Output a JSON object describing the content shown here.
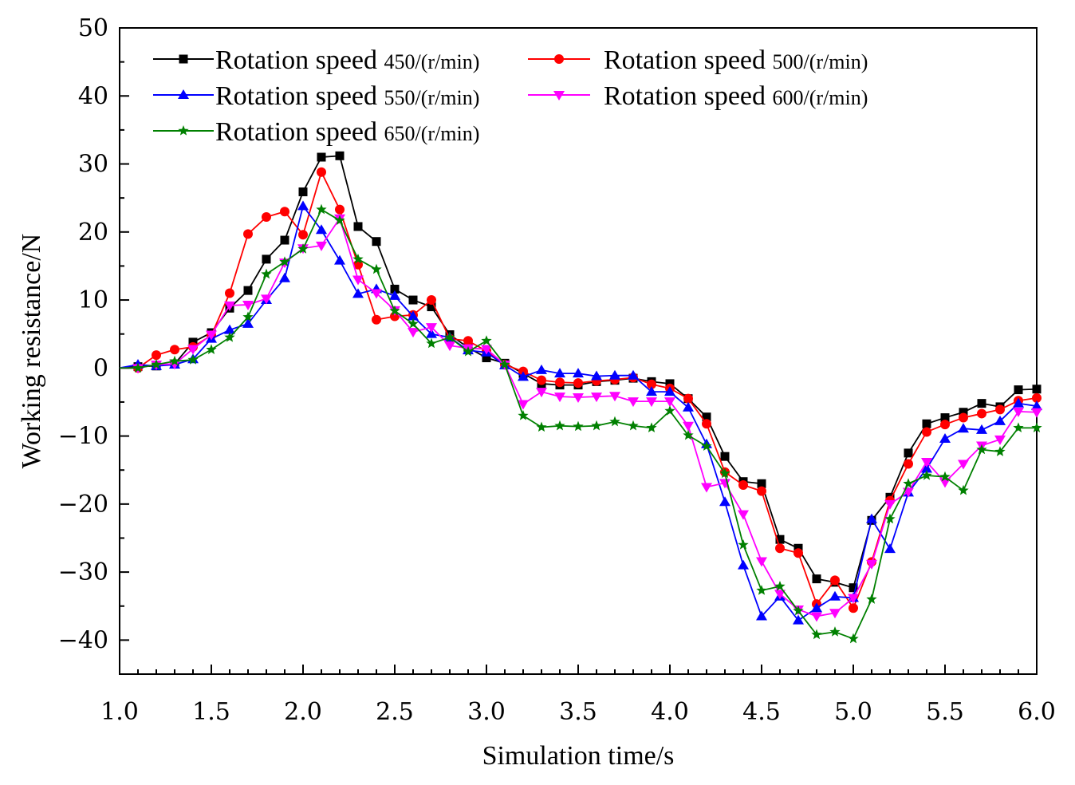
{
  "chart_data": {
    "type": "line",
    "title": "",
    "xlabel": "Simulation time/s",
    "ylabel": "Working resistance/N",
    "xlim": [
      1.0,
      6.0
    ],
    "ylim": [
      -45,
      50
    ],
    "xticks": [
      1.0,
      1.5,
      2.0,
      2.5,
      3.0,
      3.5,
      4.0,
      4.5,
      5.0,
      5.5,
      6.0
    ],
    "xtick_labels": [
      "1.0",
      "1.5",
      "2.0",
      "2.5",
      "3.0",
      "3.5",
      "4.0",
      "4.5",
      "5.0",
      "5.5",
      "6.0"
    ],
    "yticks": [
      -40,
      -30,
      -20,
      -10,
      0,
      10,
      20,
      30,
      40,
      50
    ],
    "ytick_labels": [
      "−40",
      "−30",
      "−20",
      "−10",
      "0",
      "10",
      "20",
      "30",
      "40",
      "50"
    ],
    "grid": false,
    "legend_position": "top-left",
    "x": [
      1.0,
      1.1,
      1.2,
      1.3,
      1.4,
      1.5,
      1.6,
      1.7,
      1.8,
      1.9,
      2.0,
      2.1,
      2.2,
      2.3,
      2.4,
      2.5,
      2.6,
      2.7,
      2.8,
      2.9,
      3.0,
      3.1,
      3.2,
      3.3,
      3.4,
      3.5,
      3.6,
      3.7,
      3.8,
      3.9,
      4.0,
      4.1,
      4.2,
      4.3,
      4.4,
      4.5,
      4.6,
      4.7,
      4.8,
      4.9,
      5.0,
      5.1,
      5.2,
      5.3,
      5.4,
      5.5,
      5.6,
      5.7,
      5.8,
      5.9,
      6.0
    ],
    "series": [
      {
        "name": "Rotation speed ",
        "unit": "450/(r/min)",
        "color": "#000000",
        "marker": "square",
        "values": [
          0,
          0.2,
          0.3,
          0.6,
          3.8,
          5.2,
          8.8,
          11.4,
          16,
          18.8,
          25.9,
          31,
          31.2,
          20.8,
          18.6,
          11.6,
          10,
          9,
          4.9,
          3,
          1.5,
          0.7,
          -0.8,
          -2.3,
          -2.5,
          -2.5,
          -2,
          -1.8,
          -1.5,
          -2,
          -2.3,
          -4.5,
          -7.2,
          -13,
          -16.7,
          -17,
          -25.2,
          -26.5,
          -31,
          -31.5,
          -32.3,
          -22.4,
          -19,
          -12.5,
          -8.2,
          -7.3,
          -6.5,
          -5.2,
          -5.7,
          -3.2,
          -3.1
        ]
      },
      {
        "name": "Rotation speed ",
        "unit": "500/(r/min)",
        "color": "#ff0000",
        "marker": "circle",
        "values": [
          0,
          0,
          1.9,
          2.7,
          3.1,
          4.8,
          11,
          19.7,
          22.2,
          23,
          19.6,
          28.8,
          23.3,
          15.2,
          7.1,
          7.6,
          7.8,
          10,
          4.3,
          4,
          2.5,
          0.5,
          -0.5,
          -1.8,
          -2.1,
          -2.2,
          -1.9,
          -1.7,
          -1.4,
          -2.4,
          -3,
          -4.5,
          -8.2,
          -15.3,
          -17.2,
          -18.1,
          -26.5,
          -27.2,
          -34.7,
          -31.2,
          -35.3,
          -28.5,
          -19.5,
          -14.1,
          -9.4,
          -8.3,
          -7.3,
          -6.7,
          -6.1,
          -4.8,
          -4.4
        ]
      },
      {
        "name": "Rotation speed ",
        "unit": "550/(r/min)",
        "color": "#0000ff",
        "marker": "triangle-up",
        "values": [
          0,
          0.5,
          0.3,
          0.5,
          1.3,
          4.3,
          5.6,
          6.5,
          10,
          13.2,
          23.8,
          20.3,
          15.8,
          10.9,
          11.6,
          10.6,
          7.6,
          5,
          4.5,
          2.6,
          2.3,
          0.4,
          -1.3,
          -0.3,
          -0.8,
          -0.8,
          -1.2,
          -1.1,
          -1.1,
          -3.5,
          -3.5,
          -5.8,
          -11.2,
          -19.7,
          -29,
          -36.5,
          -33.6,
          -37.1,
          -35.3,
          -33.6,
          -33.8,
          -22.2,
          -26.6,
          -18.3,
          -14.8,
          -10.4,
          -8.9,
          -9.1,
          -7.8,
          -5.2,
          -5.6
        ]
      },
      {
        "name": "Rotation speed ",
        "unit": "600/(r/min)",
        "color": "#ff00ff",
        "marker": "triangle-down",
        "values": [
          0,
          0,
          0.5,
          0.6,
          2.8,
          4.9,
          9.2,
          9.3,
          10.2,
          15.5,
          17.6,
          18,
          22,
          13,
          11,
          8.5,
          5.3,
          6,
          3.3,
          2.9,
          2.8,
          0.5,
          -5.3,
          -3.5,
          -4.2,
          -4.3,
          -4.2,
          -4.1,
          -4.9,
          -4.9,
          -4.9,
          -8.5,
          -17.5,
          -16.9,
          -21.5,
          -28.4,
          -33.2,
          -35.5,
          -36.5,
          -36,
          -33.8,
          -28.8,
          -20,
          -18.2,
          -13.8,
          -16.8,
          -14.1,
          -11.4,
          -10.5,
          -6.4,
          -6.5
        ]
      },
      {
        "name": "Rotation speed ",
        "unit": "650/(r/min)",
        "color": "#008000",
        "marker": "star",
        "values": [
          0,
          0,
          0.5,
          1,
          1.2,
          2.7,
          4.5,
          7.5,
          13.8,
          15.6,
          17.5,
          23.3,
          21.7,
          16,
          14.5,
          8.4,
          6.5,
          3.6,
          4.5,
          2.4,
          4,
          0.5,
          -7,
          -8.7,
          -8.5,
          -8.6,
          -8.5,
          -7.9,
          -8.5,
          -8.8,
          -6.3,
          -9.9,
          -11.5,
          -15.5,
          -26,
          -32.7,
          -32.1,
          -35.7,
          -39.2,
          -38.8,
          -39.8,
          -34,
          -22.2,
          -17,
          -15.8,
          -16,
          -18,
          -12,
          -12.3,
          -8.8,
          -8.8
        ]
      }
    ]
  }
}
